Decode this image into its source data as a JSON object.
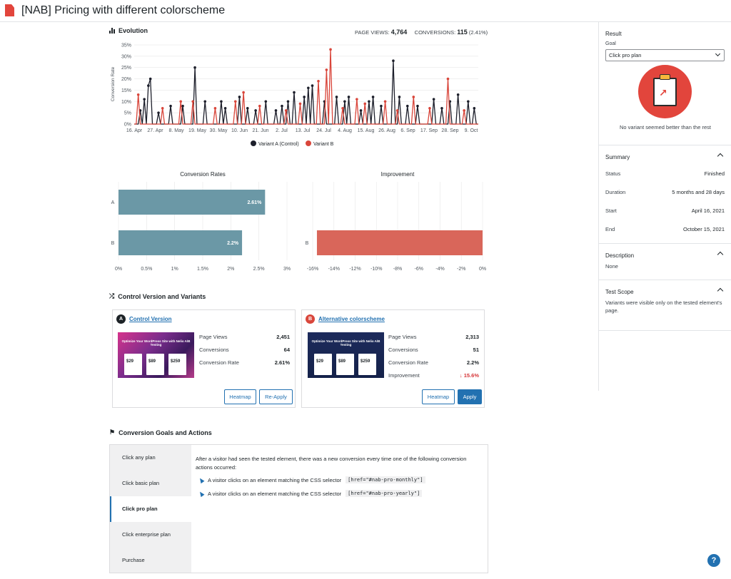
{
  "page": {
    "title": "[NAB] Pricing with different colorscheme"
  },
  "evolution": {
    "heading": "Evolution",
    "page_views_label": "PAGE VIEWS:",
    "page_views": "4,764",
    "conversions_label": "CONVERSIONS:",
    "conversions": "115",
    "conversions_pct": "(2.41%)"
  },
  "sidebar": {
    "result_heading": "Result",
    "goal_label": "Goal",
    "goal_value": "Click pro plan",
    "result_text": "No variant seemed better than the rest",
    "summary_heading": "Summary",
    "summary_rows": [
      {
        "label": "Status",
        "value": "Finished"
      },
      {
        "label": "Duration",
        "value": "5 months and 28 days"
      },
      {
        "label": "Start",
        "value": "April 16, 2021"
      },
      {
        "label": "End",
        "value": "October 15, 2021"
      }
    ],
    "description_heading": "Description",
    "description_text": "None",
    "scope_heading": "Test Scope",
    "scope_text": "Variants were visible only on the tested element's page."
  },
  "variants": {
    "heading": "Control Version and Variants",
    "control": {
      "badge": "A",
      "title": "Control Version",
      "thumb_text": "Optimize Your WordPress Site with Nelio A/B Testing",
      "prices": [
        "$29",
        "$89",
        "$259"
      ],
      "metrics": [
        {
          "label": "Page Views",
          "value": "2,451"
        },
        {
          "label": "Conversions",
          "value": "64"
        },
        {
          "label": "Conversion Rate",
          "value": "2.61%"
        }
      ],
      "buttons": [
        "Heatmap",
        "Re-Apply"
      ]
    },
    "alternative": {
      "badge": "B",
      "title": "Alternative colorscheme",
      "thumb_text": "Optimize Your WordPress Site with Nelio A/B Testing",
      "prices": [
        "$29",
        "$89",
        "$259"
      ],
      "metrics": [
        {
          "label": "Page Views",
          "value": "2,313"
        },
        {
          "label": "Conversions",
          "value": "51"
        },
        {
          "label": "Conversion Rate",
          "value": "2.2%"
        },
        {
          "label": "Improvement",
          "value": "15.6%"
        }
      ],
      "buttons": [
        "Heatmap",
        "Apply"
      ]
    }
  },
  "goals": {
    "heading": "Conversion Goals and Actions",
    "tabs": [
      "Click any plan",
      "Click basic plan",
      "Click pro plan",
      "Click enterprise plan",
      "Purchase"
    ],
    "active_tab": "Click pro plan",
    "description": "After a visitor had seen the tested element, there was a new conversion every time one of the following conversion actions occurred:",
    "actions": [
      {
        "text": "A visitor clicks on an element matching the CSS selector",
        "selector": "[href=\"#nab-pro-monthly\"]"
      },
      {
        "text": "A visitor clicks on an element matching the CSS selector",
        "selector": "[href=\"#nab-pro-yearly\"]"
      }
    ]
  },
  "colors": {
    "variant_a": "#1d1f2b",
    "variant_b": "#d9463b",
    "rate_bar": "#6b98a6",
    "improvement_bar": "#d9665a",
    "accent": "#2271b1"
  },
  "chart_data": [
    {
      "type": "line",
      "title": "",
      "ylabel": "Conversion Rate",
      "ylim": [
        0,
        35
      ],
      "yticks": [
        "0%",
        "5%",
        "10%",
        "15%",
        "20%",
        "25%",
        "30%",
        "35%"
      ],
      "x_ticks": [
        "16. Apr",
        "27. Apr",
        "8. May",
        "19. May",
        "30. May",
        "10. Jun",
        "21. Jun",
        "2. Jul",
        "13. Jul",
        "24. Jul",
        "4. Aug",
        "15. Aug",
        "26. Aug",
        "6. Sep",
        "17. Sep",
        "28. Sep",
        "9. Oct"
      ],
      "legend": [
        "Variant A (Control)",
        "Variant B"
      ],
      "legend_position": "bottom",
      "series": [
        {
          "name": "Variant A (Control)",
          "peaks": [
            [
              3,
              6
            ],
            [
              5,
              11
            ],
            [
              7,
              17
            ],
            [
              8,
              20
            ],
            [
              12,
              5
            ],
            [
              18,
              8
            ],
            [
              24,
              8
            ],
            [
              30,
              25
            ],
            [
              35,
              10
            ],
            [
              43,
              10
            ],
            [
              45,
              7
            ],
            [
              52,
              12
            ],
            [
              56,
              7
            ],
            [
              60,
              6
            ],
            [
              65,
              10
            ],
            [
              70,
              6
            ],
            [
              73,
              8
            ],
            [
              76,
              10
            ],
            [
              79,
              14
            ],
            [
              84,
              12
            ],
            [
              86,
              16
            ],
            [
              88,
              17
            ],
            [
              94,
              10
            ],
            [
              100,
              12
            ],
            [
              104,
              10
            ],
            [
              106,
              12
            ],
            [
              112,
              6
            ],
            [
              116,
              10
            ],
            [
              118,
              12
            ],
            [
              122,
              8
            ],
            [
              128,
              28
            ],
            [
              131,
              12
            ],
            [
              135,
              8
            ],
            [
              140,
              8
            ],
            [
              148,
              11
            ],
            [
              152,
              7
            ],
            [
              156,
              10
            ],
            [
              160,
              13
            ],
            [
              165,
              10
            ],
            [
              168,
              7
            ]
          ]
        },
        {
          "name": "Variant B",
          "peaks": [
            [
              2,
              13
            ],
            [
              14,
              7
            ],
            [
              23,
              10
            ],
            [
              29,
              10
            ],
            [
              40,
              7
            ],
            [
              50,
              10
            ],
            [
              54,
              14
            ],
            [
              62,
              8
            ],
            [
              75,
              6
            ],
            [
              82,
              9
            ],
            [
              91,
              19
            ],
            [
              95,
              24
            ],
            [
              97,
              33
            ],
            [
              103,
              7
            ],
            [
              110,
              11
            ],
            [
              114,
              9
            ],
            [
              124,
              10
            ],
            [
              130,
              6
            ],
            [
              138,
              12
            ],
            [
              146,
              7
            ],
            [
              155,
              20
            ],
            [
              163,
              6
            ]
          ]
        }
      ]
    },
    {
      "type": "bar",
      "title": "Conversion Rates",
      "categories": [
        "A",
        "B"
      ],
      "values": [
        2.61,
        2.2
      ],
      "data_labels": [
        "2.61%",
        "2.2%"
      ],
      "xlim": [
        0,
        3
      ],
      "xticks": [
        "0%",
        "0.5%",
        "1%",
        "1.5%",
        "2%",
        "2.5%",
        "3%"
      ]
    },
    {
      "type": "bar",
      "title": "Improvement",
      "categories": [
        "B"
      ],
      "values": [
        -15.6
      ],
      "xlim": [
        -16,
        0
      ],
      "xticks": [
        "-16%",
        "-14%",
        "-12%",
        "-10%",
        "-8%",
        "-6%",
        "-4%",
        "-2%",
        "0%"
      ]
    }
  ]
}
